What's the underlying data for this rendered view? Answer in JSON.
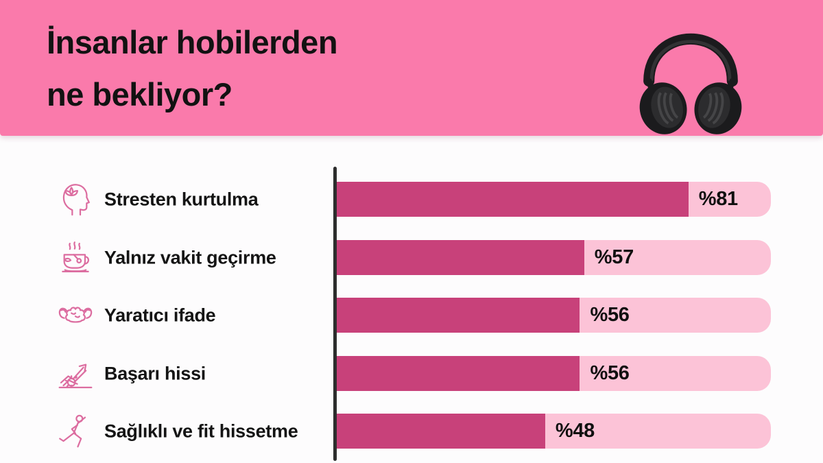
{
  "page": {
    "background": "#fdfcfd"
  },
  "header": {
    "background": "#fa7aab",
    "title_line1": "İnsanlar hobilerden",
    "title_line2": "ne bekliyor?",
    "title_color": "#121212",
    "decoration_icon": "headphones-icon"
  },
  "chart_data": {
    "type": "bar",
    "orientation": "horizontal",
    "title": "İnsanlar hobilerden ne bekliyor?",
    "categories": [
      "Stresten kurtulma",
      "Yalnız vakit geçirme",
      "Yaratıcı ifade",
      "Başarı hissi",
      "Sağlıklı ve fit hissetme"
    ],
    "values": [
      81,
      57,
      56,
      56,
      48
    ],
    "value_labels": [
      "%81",
      "%57",
      "%56",
      "%56",
      "%48"
    ],
    "icons": [
      "mindfulness-head-lotus-icon",
      "tea-cup-icon",
      "strong-brain-icon",
      "growth-chart-gear-icon",
      "exercising-person-icon"
    ],
    "xlim": [
      0,
      100
    ],
    "grid": false,
    "legend": false,
    "bar_color": "#c8417a",
    "track_color": "#fcc3d7",
    "axis_color": "#2d2d2d",
    "label_color": "#141414",
    "value_color": "#101010",
    "icon_color": "#dc6da0"
  }
}
